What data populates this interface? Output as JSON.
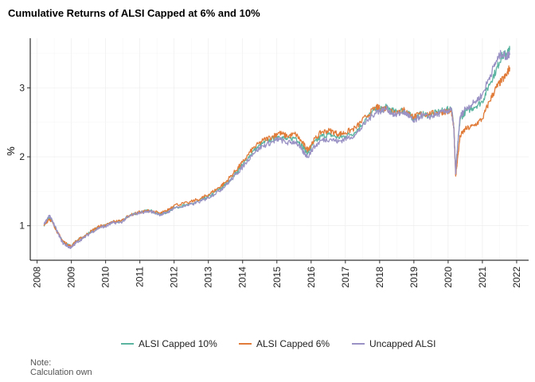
{
  "chart_data": {
    "type": "line",
    "title": "Cumulative Returns of ALSI Capped at 6% and 10%",
    "xlabel": "",
    "ylabel": "%",
    "xlim": [
      2007.8,
      2022.35
    ],
    "ylim": [
      0.5,
      3.72
    ],
    "x_ticks": [
      "2008",
      "2009",
      "2010",
      "2011",
      "2012",
      "2013",
      "2014",
      "2015",
      "2016",
      "2017",
      "2018",
      "2019",
      "2020",
      "2021",
      "2022"
    ],
    "y_ticks": [
      "1",
      "2",
      "3"
    ],
    "grid": true,
    "legend_position": "bottom",
    "note": [
      "Note:",
      "Calculation own"
    ],
    "x": [
      2008.2,
      2008.35,
      2008.45,
      2008.6,
      2008.75,
      2008.9,
      2009.0,
      2009.15,
      2009.35,
      2009.6,
      2009.85,
      2010.0,
      2010.2,
      2010.45,
      2010.7,
      2011.0,
      2011.3,
      2011.6,
      2011.8,
      2012.0,
      2012.4,
      2012.8,
      2013.0,
      2013.3,
      2013.5,
      2013.8,
      2014.0,
      2014.3,
      2014.6,
      2014.9,
      2015.05,
      2015.3,
      2015.55,
      2015.75,
      2015.9,
      2016.05,
      2016.3,
      2016.55,
      2016.8,
      2017.0,
      2017.3,
      2017.6,
      2017.9,
      2018.0,
      2018.2,
      2018.45,
      2018.7,
      2018.85,
      2019.0,
      2019.2,
      2019.45,
      2019.7,
      2019.95,
      2020.1,
      2020.17,
      2020.22,
      2020.26,
      2020.35,
      2020.5,
      2020.75,
      2021.0,
      2021.2,
      2021.4,
      2021.55,
      2021.7,
      2021.8
    ],
    "series": [
      {
        "name": "ALSI Capped 10%",
        "color": "#5ab4a0",
        "values": [
          1.01,
          1.12,
          1.06,
          0.9,
          0.77,
          0.72,
          0.7,
          0.78,
          0.84,
          0.92,
          0.99,
          1.0,
          1.05,
          1.06,
          1.15,
          1.2,
          1.22,
          1.17,
          1.2,
          1.27,
          1.3,
          1.37,
          1.42,
          1.52,
          1.6,
          1.76,
          1.88,
          2.08,
          2.2,
          2.26,
          2.3,
          2.25,
          2.28,
          2.15,
          2.05,
          2.18,
          2.3,
          2.32,
          2.28,
          2.3,
          2.36,
          2.55,
          2.7,
          2.68,
          2.72,
          2.65,
          2.68,
          2.62,
          2.55,
          2.62,
          2.6,
          2.65,
          2.68,
          2.7,
          2.4,
          1.78,
          2.05,
          2.55,
          2.65,
          2.72,
          2.8,
          3.05,
          3.25,
          3.45,
          3.5,
          3.55
        ]
      },
      {
        "name": "ALSI Capped 6%",
        "color": "#e07b39",
        "values": [
          1.0,
          1.1,
          1.05,
          0.9,
          0.78,
          0.72,
          0.7,
          0.78,
          0.84,
          0.93,
          1.0,
          1.0,
          1.06,
          1.07,
          1.15,
          1.2,
          1.22,
          1.18,
          1.22,
          1.3,
          1.33,
          1.4,
          1.45,
          1.55,
          1.63,
          1.8,
          1.92,
          2.12,
          2.24,
          2.3,
          2.35,
          2.3,
          2.33,
          2.2,
          2.1,
          2.22,
          2.36,
          2.38,
          2.33,
          2.35,
          2.42,
          2.58,
          2.72,
          2.7,
          2.7,
          2.65,
          2.68,
          2.62,
          2.58,
          2.62,
          2.62,
          2.64,
          2.66,
          2.65,
          2.4,
          1.72,
          1.9,
          2.3,
          2.4,
          2.45,
          2.55,
          2.8,
          3.0,
          3.1,
          3.18,
          3.3
        ]
      },
      {
        "name": "Uncapped ALSI",
        "color": "#9a91c4",
        "values": [
          1.02,
          1.15,
          1.07,
          0.9,
          0.75,
          0.7,
          0.68,
          0.76,
          0.82,
          0.91,
          0.98,
          0.99,
          1.04,
          1.05,
          1.14,
          1.19,
          1.21,
          1.16,
          1.19,
          1.26,
          1.29,
          1.36,
          1.41,
          1.5,
          1.58,
          1.74,
          1.85,
          2.05,
          2.16,
          2.22,
          2.26,
          2.2,
          2.22,
          2.08,
          2.0,
          2.12,
          2.24,
          2.26,
          2.22,
          2.26,
          2.32,
          2.5,
          2.66,
          2.66,
          2.7,
          2.6,
          2.65,
          2.6,
          2.5,
          2.6,
          2.58,
          2.62,
          2.66,
          2.68,
          2.38,
          1.75,
          2.05,
          2.58,
          2.7,
          2.78,
          2.9,
          3.15,
          3.38,
          3.5,
          3.45,
          3.5
        ]
      }
    ]
  }
}
